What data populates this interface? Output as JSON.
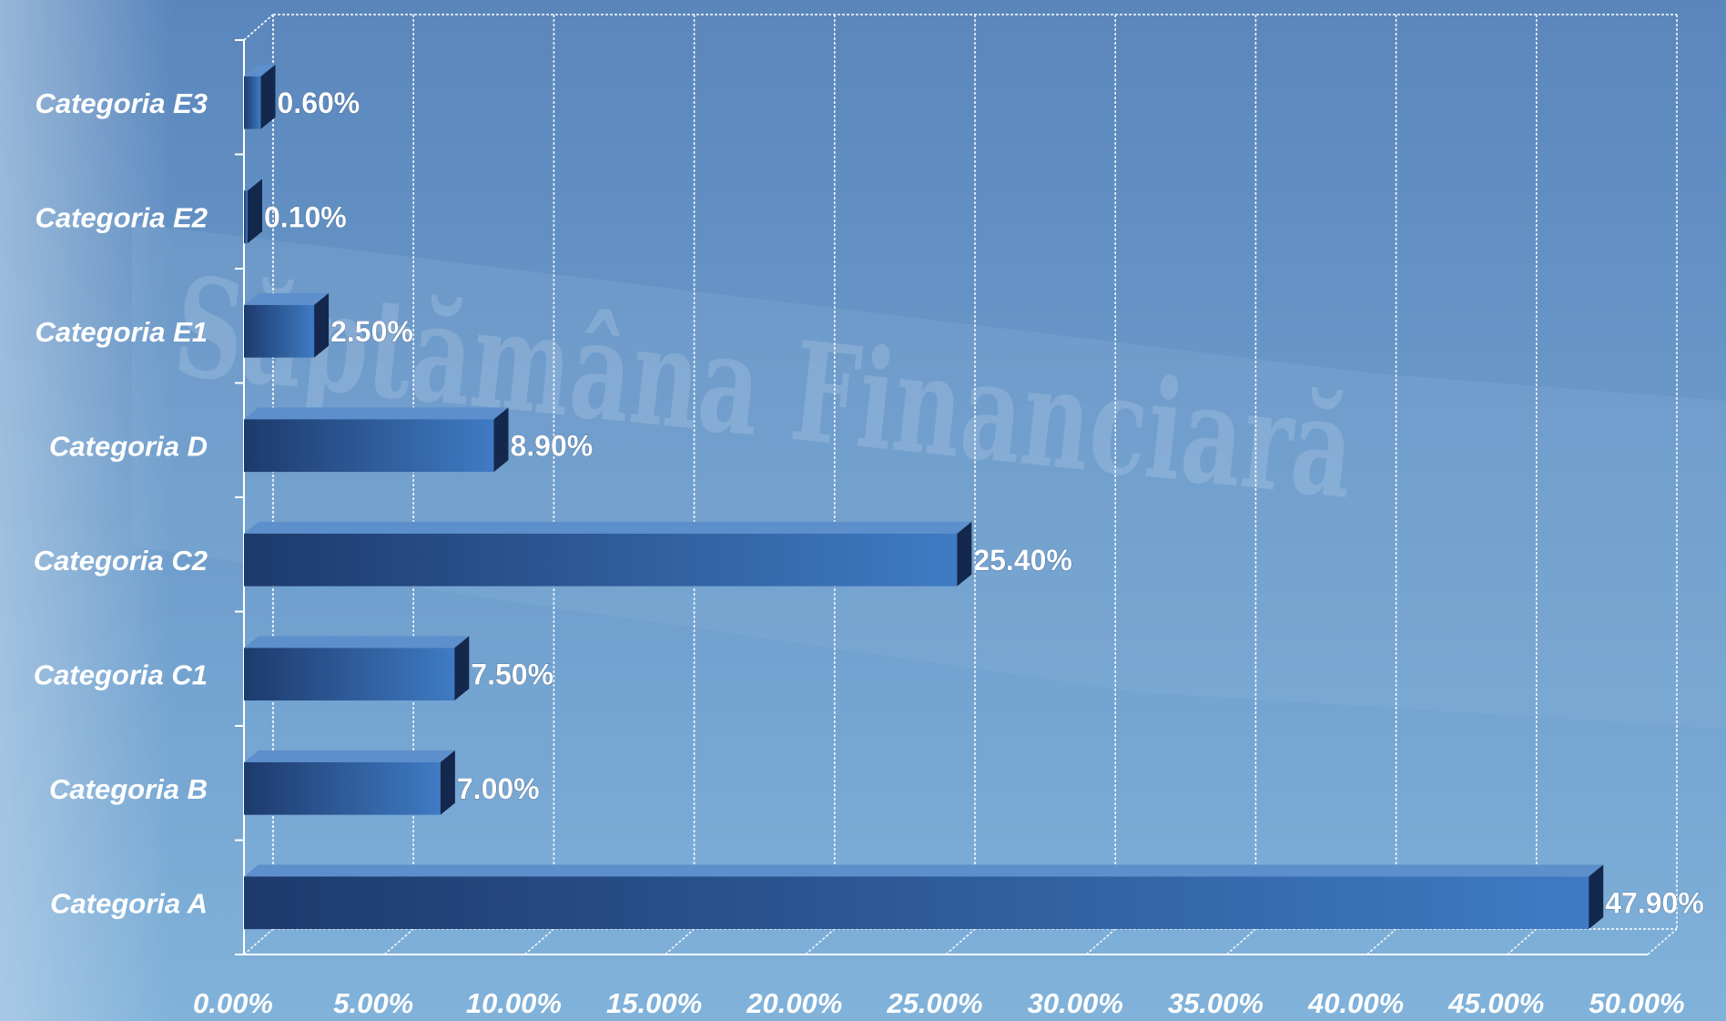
{
  "chart_data": {
    "type": "bar",
    "orientation": "horizontal",
    "categories": [
      "Categoria A",
      "Categoria B",
      "Categoria C1",
      "Categoria C2",
      "Categoria D",
      "Categoria E1",
      "Categoria E2",
      "Categoria E3"
    ],
    "values": [
      47.9,
      7.0,
      7.5,
      25.4,
      8.9,
      2.5,
      0.1,
      0.6
    ],
    "value_labels": [
      "47.90%",
      "7.00%",
      "7.50%",
      "25.40%",
      "8.90%",
      "2.50%",
      "0.10%",
      "0.60%"
    ],
    "x_ticks": [
      "0.00%",
      "5.00%",
      "10.00%",
      "15.00%",
      "20.00%",
      "25.00%",
      "30.00%",
      "35.00%",
      "40.00%",
      "45.00%",
      "50.00%"
    ],
    "xlim": [
      0,
      50
    ],
    "title": "",
    "xlabel": "",
    "ylabel": "",
    "grid": true,
    "style": "3d",
    "legend": "none",
    "colors": {
      "bar_dark": "#1d3a6c",
      "bar_light": "#3f7bc4",
      "bar_top": "#5d8fcc",
      "bar_side": "#13284c",
      "background_top": "#5b87bd",
      "background_bottom": "#7eb0d9",
      "grid": "#ffffff",
      "text": "#ffffff"
    }
  },
  "background": {
    "watermark_text": "Săptămâna Financiară"
  }
}
